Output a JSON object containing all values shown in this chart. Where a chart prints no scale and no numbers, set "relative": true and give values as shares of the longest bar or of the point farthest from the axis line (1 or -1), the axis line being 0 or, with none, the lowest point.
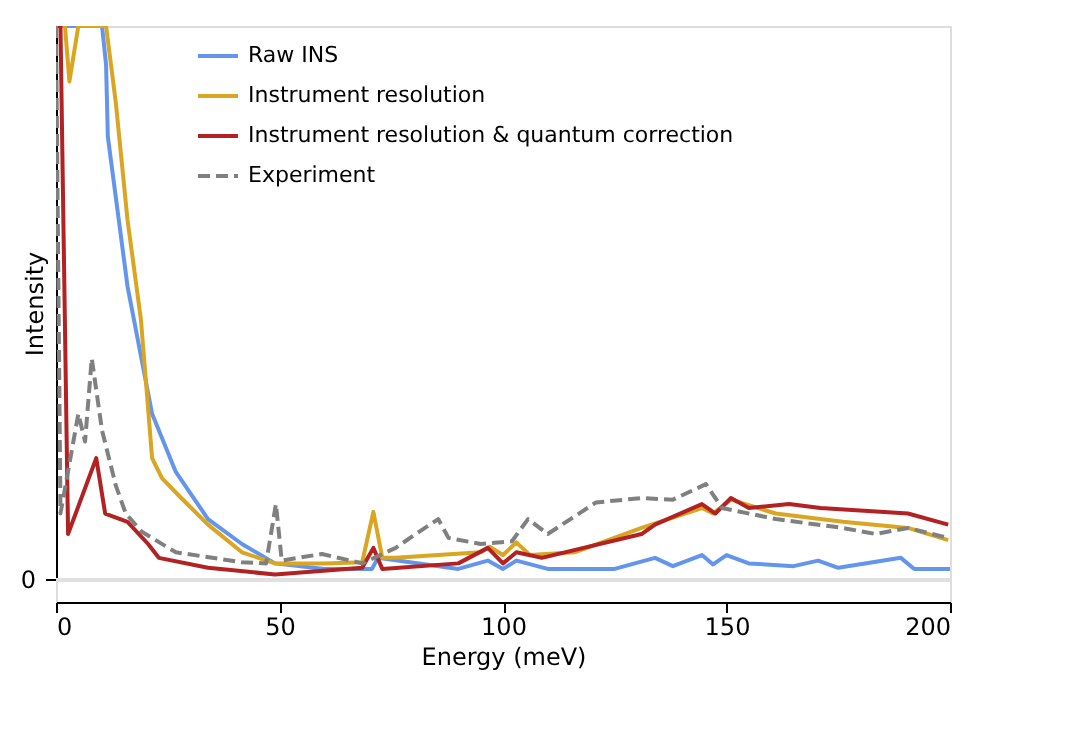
{
  "chart_data": {
    "type": "line",
    "relative": true,
    "xlabel": "Energy (meV)",
    "ylabel": "Intensity",
    "xlim": [
      0,
      200
    ],
    "xticks": [
      0,
      50,
      100,
      150,
      200
    ],
    "annotations": [
      "0"
    ],
    "legend": "top",
    "grid": false,
    "ref_lines": [
      {
        "axis": "y",
        "value": 0,
        "color": "#e0e0e0"
      }
    ],
    "series": [
      {
        "name": "Raw INS",
        "color": "#6495ed",
        "line_style": "solid",
        "x": [
          0,
          10.3,
          11.2,
          11.6,
          16,
          21.5,
          26.8,
          34,
          41.6,
          49,
          60,
          70.7,
          72,
          90,
          96.6,
          100,
          103,
          110,
          125,
          134,
          138,
          144.5,
          147,
          150,
          155,
          165,
          170.5,
          175,
          189,
          192,
          200
        ],
        "values": [
          1,
          1,
          0.93,
          0.8,
          0.53,
          0.3,
          0.195,
          0.11,
          0.065,
          0.03,
          0.02,
          0.02,
          0.04,
          0.02,
          0.035,
          0.02,
          0.035,
          0.02,
          0.02,
          0.04,
          0.025,
          0.045,
          0.028,
          0.045,
          0.03,
          0.025,
          0.035,
          0.022,
          0.04,
          0.02,
          0.02
        ]
      },
      {
        "name": "Instrument resolution",
        "color": "#daa520",
        "line_style": "solid",
        "x": [
          0,
          2,
          3,
          5,
          11.2,
          13.4,
          16,
          19,
          21.5,
          23.7,
          28,
          34,
          41.6,
          49,
          60,
          68.5,
          71,
          73,
          76,
          95,
          97,
          100,
          103,
          106,
          116,
          131,
          144.5,
          147,
          151,
          161,
          176,
          190.6,
          199.6
        ],
        "values": [
          1,
          1,
          0.9,
          1,
          1,
          0.86,
          0.65,
          0.47,
          0.22,
          0.184,
          0.148,
          0.1,
          0.05,
          0.03,
          0.03,
          0.032,
          0.123,
          0.04,
          0.04,
          0.05,
          0.06,
          0.045,
          0.068,
          0.045,
          0.05,
          0.094,
          0.13,
          0.12,
          0.145,
          0.12,
          0.105,
          0.094,
          0.072
        ]
      },
      {
        "name": "Instrument resolution & quantum correction",
        "color": "#b22222",
        "line_style": "solid",
        "x": [
          0,
          1,
          2.7,
          9,
          11,
          16,
          20.6,
          23,
          34,
          49,
          68.5,
          71,
          73,
          90,
          96.6,
          100,
          103,
          108.7,
          131,
          134,
          144.5,
          147.5,
          151,
          155,
          164,
          171,
          190.6,
          199.6
        ],
        "values": [
          1,
          1,
          0.083,
          0.22,
          0.12,
          0.105,
          0.065,
          0.04,
          0.022,
          0.01,
          0.022,
          0.058,
          0.02,
          0.03,
          0.058,
          0.03,
          0.05,
          0.04,
          0.083,
          0.1,
          0.137,
          0.12,
          0.148,
          0.13,
          0.137,
          0.13,
          0.12,
          0.1
        ]
      },
      {
        "name": "Experiment",
        "color": "#808080",
        "line_style": "dashed",
        "x": [
          0,
          1,
          5,
          6.5,
          8,
          10.3,
          13.4,
          15.6,
          19.2,
          26.8,
          41.6,
          47,
          49.2,
          50.5,
          59.5,
          68.5,
          76,
          80.5,
          85.5,
          87.8,
          95,
          102,
          105.6,
          110,
          120.8,
          131,
          138,
          145.4,
          149,
          161,
          176,
          183.4,
          190.6,
          199.6
        ],
        "values": [
          1,
          0.12,
          0.3,
          0.25,
          0.4,
          0.27,
          0.17,
          0.12,
          0.087,
          0.05,
          0.032,
          0.03,
          0.137,
          0.035,
          0.047,
          0.03,
          0.058,
          0.083,
          0.11,
          0.076,
          0.065,
          0.07,
          0.11,
          0.083,
          0.14,
          0.148,
          0.145,
          0.173,
          0.13,
          0.11,
          0.094,
          0.083,
          0.094,
          0.076
        ]
      }
    ]
  }
}
